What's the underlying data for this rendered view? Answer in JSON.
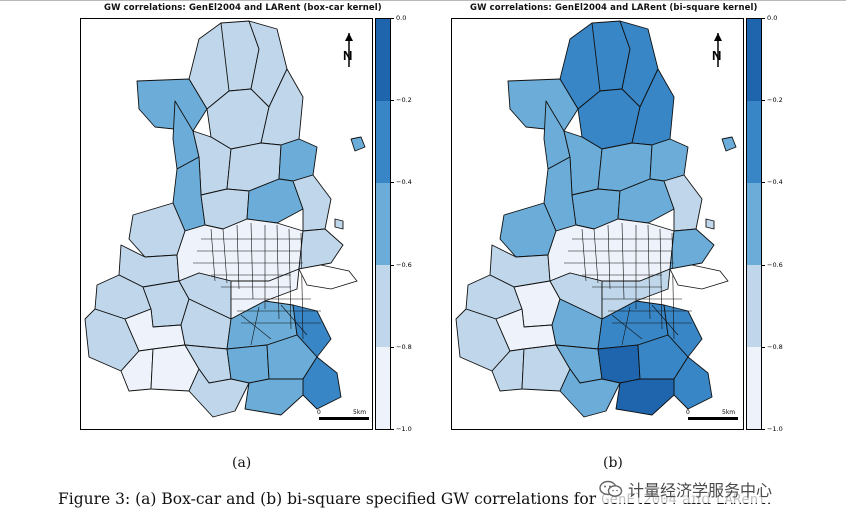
{
  "panels": [
    {
      "title": "GW correlations: GenEl2004 and LARent (box-car kernel)",
      "sublabel": "(a)",
      "scale": {
        "zero": "0",
        "dist": "5km"
      },
      "north": "N"
    },
    {
      "title": "GW correlations: GenEl2004 and LARent (bi-square kernel)",
      "sublabel": "(b)",
      "scale": {
        "zero": "0",
        "dist": "5km"
      },
      "north": "N"
    }
  ],
  "legend": {
    "ticks": [
      "0.0",
      "−0.2",
      "−0.4",
      "−0.6",
      "−0.8",
      "−1.0"
    ],
    "colors": [
      "#1f65ad",
      "#3886c6",
      "#6badd8",
      "#c0d7eb",
      "#eef3fb"
    ]
  },
  "caption": {
    "prefix": "Figure 3: (a) Box-car and (b) bi-square specified GW correlations for",
    "var1": "GenEl2004",
    "middle": "and",
    "var2": "LARent",
    "suffix": "."
  },
  "watermark": {
    "text": "计量经济学服务中心",
    "icon": "wechat-icon"
  }
}
